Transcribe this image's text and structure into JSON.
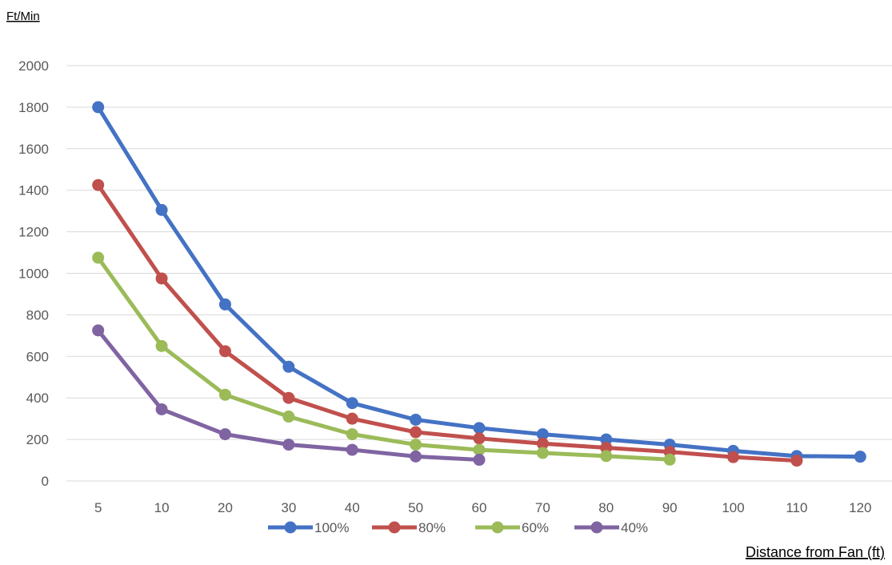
{
  "chart_data": {
    "type": "line",
    "ylabel": "Ft/Min",
    "xlabel": "Distance from Fan (ft)",
    "categories": [
      "5",
      "10",
      "20",
      "30",
      "40",
      "50",
      "60",
      "70",
      "80",
      "90",
      "100",
      "110",
      "120"
    ],
    "ylim": [
      0,
      2000
    ],
    "yticks": [
      0,
      200,
      400,
      600,
      800,
      1000,
      1200,
      1400,
      1600,
      1800,
      2000
    ],
    "grid": true,
    "legend_position": "bottom",
    "series": [
      {
        "name": "100%",
        "color": "#4472C4",
        "values": [
          1800,
          1305,
          850,
          550,
          375,
          295,
          255,
          225,
          200,
          175,
          145,
          120,
          117
        ]
      },
      {
        "name": "80%",
        "color": "#C0504D",
        "values": [
          1425,
          975,
          625,
          400,
          300,
          235,
          205,
          180,
          160,
          140,
          115,
          98,
          null
        ]
      },
      {
        "name": "60%",
        "color": "#9BBB59",
        "values": [
          1075,
          650,
          415,
          310,
          225,
          175,
          150,
          135,
          120,
          103,
          null,
          null,
          null
        ]
      },
      {
        "name": "40%",
        "color": "#8064A2",
        "values": [
          725,
          345,
          225,
          175,
          150,
          118,
          102,
          null,
          null,
          null,
          null,
          null,
          null
        ]
      }
    ]
  }
}
